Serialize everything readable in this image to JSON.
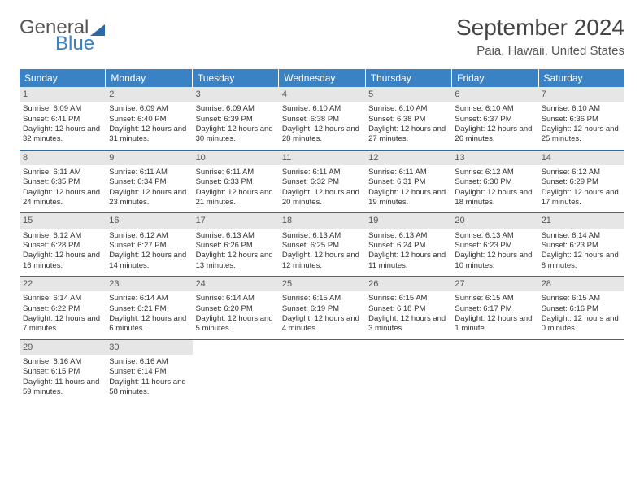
{
  "logo": {
    "line1": "General",
    "line2": "Blue"
  },
  "title": "September 2024",
  "location": "Paia, Hawaii, United States",
  "colors": {
    "header_bg": "#3b82c4",
    "header_text": "#ffffff",
    "daynum_bg": "#e6e6e6",
    "week_divider": "#2d6aa3",
    "logo_accent": "#3b82c4"
  },
  "days_of_week": [
    "Sunday",
    "Monday",
    "Tuesday",
    "Wednesday",
    "Thursday",
    "Friday",
    "Saturday"
  ],
  "weeks": [
    [
      {
        "n": 1,
        "sr": "6:09 AM",
        "ss": "6:41 PM",
        "dl": "12 hours and 32 minutes."
      },
      {
        "n": 2,
        "sr": "6:09 AM",
        "ss": "6:40 PM",
        "dl": "12 hours and 31 minutes."
      },
      {
        "n": 3,
        "sr": "6:09 AM",
        "ss": "6:39 PM",
        "dl": "12 hours and 30 minutes."
      },
      {
        "n": 4,
        "sr": "6:10 AM",
        "ss": "6:38 PM",
        "dl": "12 hours and 28 minutes."
      },
      {
        "n": 5,
        "sr": "6:10 AM",
        "ss": "6:38 PM",
        "dl": "12 hours and 27 minutes."
      },
      {
        "n": 6,
        "sr": "6:10 AM",
        "ss": "6:37 PM",
        "dl": "12 hours and 26 minutes."
      },
      {
        "n": 7,
        "sr": "6:10 AM",
        "ss": "6:36 PM",
        "dl": "12 hours and 25 minutes."
      }
    ],
    [
      {
        "n": 8,
        "sr": "6:11 AM",
        "ss": "6:35 PM",
        "dl": "12 hours and 24 minutes."
      },
      {
        "n": 9,
        "sr": "6:11 AM",
        "ss": "6:34 PM",
        "dl": "12 hours and 23 minutes."
      },
      {
        "n": 10,
        "sr": "6:11 AM",
        "ss": "6:33 PM",
        "dl": "12 hours and 21 minutes."
      },
      {
        "n": 11,
        "sr": "6:11 AM",
        "ss": "6:32 PM",
        "dl": "12 hours and 20 minutes."
      },
      {
        "n": 12,
        "sr": "6:11 AM",
        "ss": "6:31 PM",
        "dl": "12 hours and 19 minutes."
      },
      {
        "n": 13,
        "sr": "6:12 AM",
        "ss": "6:30 PM",
        "dl": "12 hours and 18 minutes."
      },
      {
        "n": 14,
        "sr": "6:12 AM",
        "ss": "6:29 PM",
        "dl": "12 hours and 17 minutes."
      }
    ],
    [
      {
        "n": 15,
        "sr": "6:12 AM",
        "ss": "6:28 PM",
        "dl": "12 hours and 16 minutes."
      },
      {
        "n": 16,
        "sr": "6:12 AM",
        "ss": "6:27 PM",
        "dl": "12 hours and 14 minutes."
      },
      {
        "n": 17,
        "sr": "6:13 AM",
        "ss": "6:26 PM",
        "dl": "12 hours and 13 minutes."
      },
      {
        "n": 18,
        "sr": "6:13 AM",
        "ss": "6:25 PM",
        "dl": "12 hours and 12 minutes."
      },
      {
        "n": 19,
        "sr": "6:13 AM",
        "ss": "6:24 PM",
        "dl": "12 hours and 11 minutes."
      },
      {
        "n": 20,
        "sr": "6:13 AM",
        "ss": "6:23 PM",
        "dl": "12 hours and 10 minutes."
      },
      {
        "n": 21,
        "sr": "6:14 AM",
        "ss": "6:23 PM",
        "dl": "12 hours and 8 minutes."
      }
    ],
    [
      {
        "n": 22,
        "sr": "6:14 AM",
        "ss": "6:22 PM",
        "dl": "12 hours and 7 minutes."
      },
      {
        "n": 23,
        "sr": "6:14 AM",
        "ss": "6:21 PM",
        "dl": "12 hours and 6 minutes."
      },
      {
        "n": 24,
        "sr": "6:14 AM",
        "ss": "6:20 PM",
        "dl": "12 hours and 5 minutes."
      },
      {
        "n": 25,
        "sr": "6:15 AM",
        "ss": "6:19 PM",
        "dl": "12 hours and 4 minutes."
      },
      {
        "n": 26,
        "sr": "6:15 AM",
        "ss": "6:18 PM",
        "dl": "12 hours and 3 minutes."
      },
      {
        "n": 27,
        "sr": "6:15 AM",
        "ss": "6:17 PM",
        "dl": "12 hours and 1 minute."
      },
      {
        "n": 28,
        "sr": "6:15 AM",
        "ss": "6:16 PM",
        "dl": "12 hours and 0 minutes."
      }
    ],
    [
      {
        "n": 29,
        "sr": "6:16 AM",
        "ss": "6:15 PM",
        "dl": "11 hours and 59 minutes."
      },
      {
        "n": 30,
        "sr": "6:16 AM",
        "ss": "6:14 PM",
        "dl": "11 hours and 58 minutes."
      },
      null,
      null,
      null,
      null,
      null
    ]
  ],
  "labels": {
    "sunrise": "Sunrise:",
    "sunset": "Sunset:",
    "daylight": "Daylight:"
  }
}
